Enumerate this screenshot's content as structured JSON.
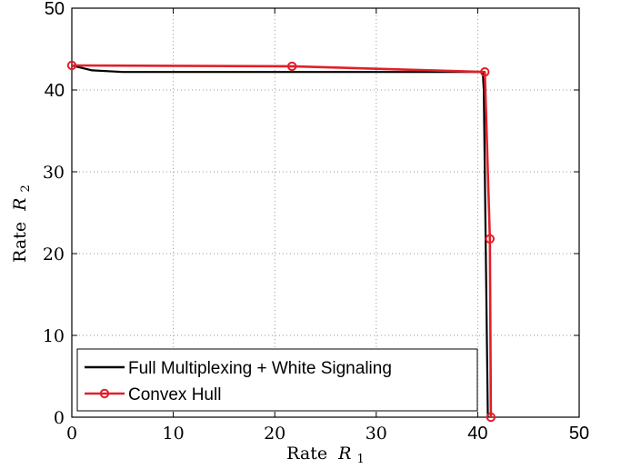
{
  "chart_data": {
    "type": "line",
    "xlabel_text": "Rate",
    "xlabel_var": "R",
    "xlabel_sub": "1",
    "ylabel_text": "Rate",
    "ylabel_var": "R",
    "ylabel_sub": "2",
    "xlim": [
      0,
      50
    ],
    "ylim": [
      0,
      50
    ],
    "x_ticks": [
      {
        "value": 0,
        "label": "0",
        "style": "serif"
      },
      {
        "value": 10,
        "label": "10",
        "style": "serif"
      },
      {
        "value": 20,
        "label": "20",
        "style": "serif"
      },
      {
        "value": 30,
        "label": "30",
        "style": "serif"
      },
      {
        "value": 40,
        "label": "40",
        "style": "sans"
      },
      {
        "value": 50,
        "label": "50",
        "style": "sans"
      }
    ],
    "y_ticks": [
      {
        "value": 0,
        "label": "0",
        "style": "serif"
      },
      {
        "value": 10,
        "label": "10",
        "style": "serif"
      },
      {
        "value": 20,
        "label": "20",
        "style": "serif"
      },
      {
        "value": 30,
        "label": "30",
        "style": "serif"
      },
      {
        "value": 40,
        "label": "40",
        "style": "sans"
      },
      {
        "value": 50,
        "label": "50",
        "style": "sans"
      }
    ],
    "grid": true,
    "legend_position": "bottom-left",
    "series": [
      {
        "name": "Full Multiplexing + White Signaling",
        "color": "#000000",
        "marker": "none",
        "x": [
          0,
          2,
          5,
          10,
          20,
          30,
          38,
          40.5,
          40.6,
          40.7,
          40.8,
          40.9,
          41.0
        ],
        "y": [
          43,
          42.4,
          42.2,
          42.2,
          42.2,
          42.2,
          42.2,
          42.2,
          40,
          30,
          20,
          10,
          0
        ]
      },
      {
        "name": "Convex Hull",
        "color": "#e0202a",
        "marker": "circle",
        "x": [
          0,
          21.7,
          40.7,
          41.2,
          41.3
        ],
        "y": [
          43,
          42.9,
          42.2,
          21.8,
          0
        ]
      }
    ]
  }
}
